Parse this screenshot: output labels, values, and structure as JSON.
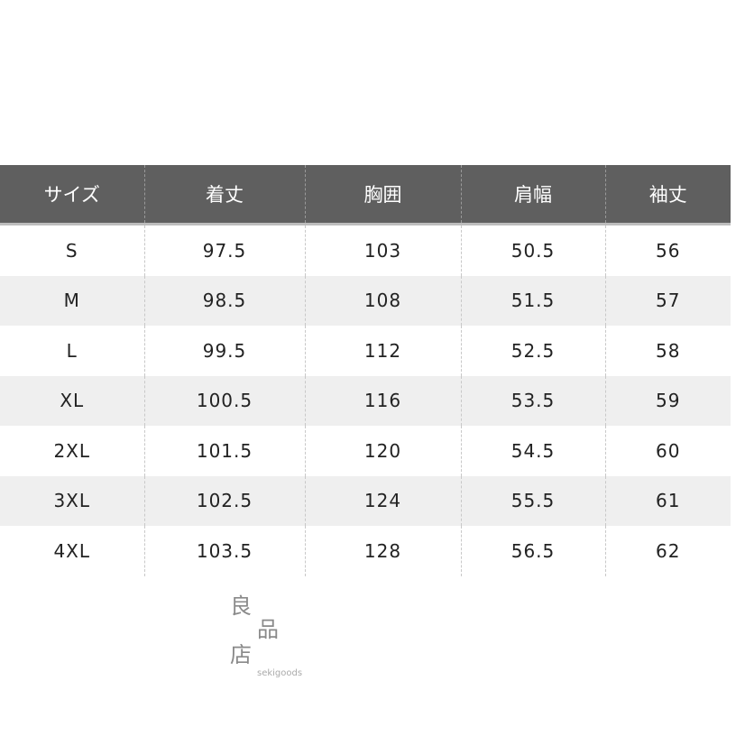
{
  "table": {
    "headers": [
      "サイズ",
      "着丈",
      "胸囲",
      "肩幅",
      "袖丈"
    ],
    "rows": [
      [
        "S",
        "97.5",
        "103",
        "50.5",
        "56"
      ],
      [
        "M",
        "98.5",
        "108",
        "51.5",
        "57"
      ],
      [
        "L",
        "99.5",
        "112",
        "52.5",
        "58"
      ],
      [
        "XL",
        "100.5",
        "116",
        "53.5",
        "59"
      ],
      [
        "2XL",
        "101.5",
        "120",
        "54.5",
        "60"
      ],
      [
        "3XL",
        "102.5",
        "124",
        "55.5",
        "61"
      ],
      [
        "4XL",
        "103.5",
        "128",
        "56.5",
        "62"
      ]
    ]
  },
  "watermark": {
    "chars": [
      "良",
      "品",
      "店"
    ],
    "text": "sekigoods"
  },
  "colors": {
    "header_bg": "#5f5f5f",
    "alt_row": "#efefef"
  }
}
